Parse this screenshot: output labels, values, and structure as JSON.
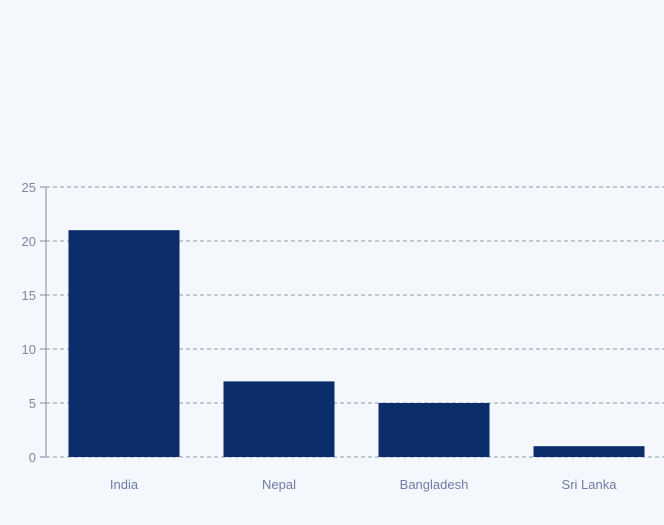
{
  "colors": {
    "background": "#f4f7fc",
    "bar": "#0b2d6b",
    "grid": "#8e9ab0",
    "axis": "#7f8aa0",
    "tick_text": "#7c87a8",
    "category_text": "#6f7ca6"
  },
  "chart_data": {
    "type": "bar",
    "categories": [
      "India",
      "Nepal",
      "Bangladesh",
      "Sri Lanka"
    ],
    "values": [
      21,
      7,
      5,
      1
    ],
    "title": "",
    "xlabel": "",
    "ylabel": "",
    "ylim": [
      0,
      25
    ],
    "yticks": [
      0,
      5,
      10,
      15,
      20,
      25
    ],
    "ytick_labels": [
      "0",
      "5",
      "10",
      "15",
      "20",
      "25"
    ],
    "grid": true,
    "grid_style": "dashed",
    "legend": "none"
  }
}
